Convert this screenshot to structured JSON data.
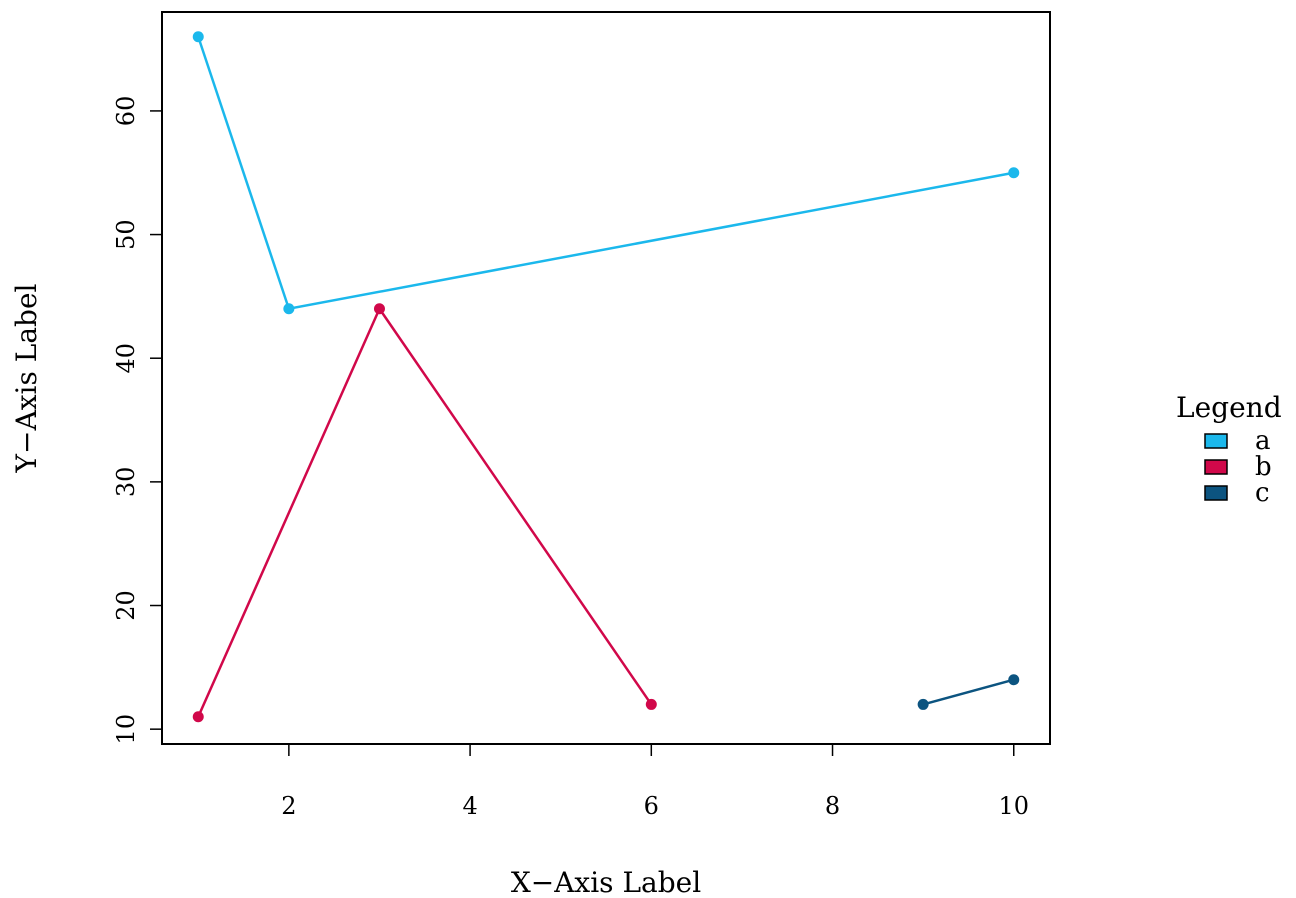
{
  "chart_data": {
    "type": "line",
    "title": "",
    "xlabel": "X−Axis Label",
    "ylabel": "Y−Axis Label",
    "xlim": [
      0.6,
      10.4
    ],
    "ylim": [
      8.8,
      68
    ],
    "x_ticks": [
      2,
      4,
      6,
      8,
      10
    ],
    "y_ticks": [
      10,
      20,
      30,
      40,
      50,
      60
    ],
    "grid": false,
    "legend": {
      "title": "Legend",
      "placement": "right"
    },
    "series": [
      {
        "name": "a",
        "color": "#1bb8ec",
        "points": [
          [
            1,
            66
          ],
          [
            2,
            44
          ],
          [
            10,
            55
          ]
        ]
      },
      {
        "name": "b",
        "color": "#d1084a",
        "points": [
          [
            1,
            11
          ],
          [
            3,
            44
          ],
          [
            6,
            12
          ]
        ]
      },
      {
        "name": "c",
        "color": "#0c5480",
        "points": [
          [
            9,
            12
          ],
          [
            10,
            14
          ]
        ]
      }
    ]
  }
}
